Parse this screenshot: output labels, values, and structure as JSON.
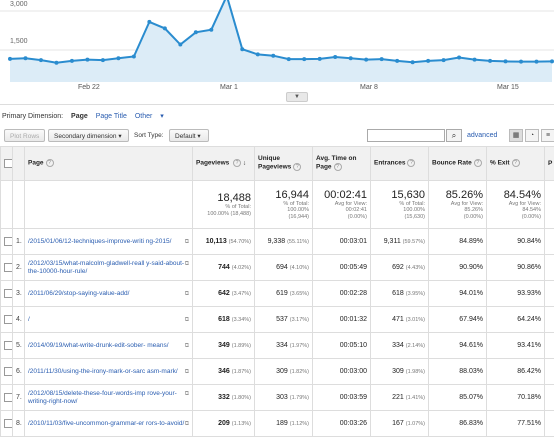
{
  "chart": {
    "y_labels": [
      "3,000",
      "1,500"
    ],
    "x_labels": [
      "Feb 22",
      "Mar 1",
      "Mar 8",
      "Mar 15"
    ],
    "series": [
      930,
      950,
      880,
      780,
      850,
      900,
      880,
      950,
      1020,
      2350,
      2100,
      1480,
      1950,
      2050,
      3350,
      1300,
      1100,
      1050,
      920,
      920,
      930,
      1000,
      950,
      900,
      920,
      850,
      800,
      850,
      880,
      980,
      900,
      850,
      830,
      820,
      820,
      830
    ],
    "line_color": "#2a8ccf",
    "fill_color": "#dcecf7"
  },
  "primary_dimension": {
    "label": "Primary Dimension:",
    "active": "Page",
    "option1": "Page Title",
    "other": "Other"
  },
  "toolbar": {
    "plot_rows": "Plot Rows",
    "secondary": "Secondary dimension",
    "sort_type_label": "Sort Type:",
    "sort_value": "Default",
    "search_placeholder": "",
    "advanced": "advanced"
  },
  "headers": {
    "page": "Page",
    "pageviews": "Pageviews",
    "unique": "Unique Pageviews",
    "avg_time": "Avg. Time on Page",
    "entrances": "Entrances",
    "bounce": "Bounce Rate",
    "exit": "% Exit",
    "extra": "P"
  },
  "totals": {
    "pageviews": "18,488",
    "pageviews_sub": "% of Total:",
    "pageviews_sub2": "100.00% (18,488)",
    "unique": "16,944",
    "unique_sub": "% of Total:",
    "unique_sub2": "100.00%",
    "unique_sub3": "(16,944)",
    "avg_time": "00:02:41",
    "avg_time_sub": "Avg for View:",
    "avg_time_sub2": "00:02:41",
    "avg_time_sub3": "(0.00%)",
    "entrances": "15,630",
    "entrances_sub": "% of Total:",
    "entrances_sub2": "100.00%",
    "entrances_sub3": "(15,630)",
    "bounce": "85.26%",
    "bounce_sub": "Avg for View:",
    "bounce_sub2": "85.26%",
    "bounce_sub3": "(0.00%)",
    "exit": "84.54%",
    "exit_sub": "Avg for View:",
    "exit_sub2": "84.54%",
    "exit_sub3": "(0.00%)"
  },
  "rows": [
    {
      "idx": "1.",
      "page": "/2015/01/06/12-techniques-improve-writi ng-2015/",
      "pv": "10,113",
      "pv_pct": "(54.70%)",
      "upv": "9,338",
      "upv_pct": "(55.11%)",
      "time": "00:03:01",
      "ent": "9,311",
      "ent_pct": "(59.57%)",
      "bounce": "84.89%",
      "exit": "90.84%"
    },
    {
      "idx": "2.",
      "page": "/2012/03/15/what-malcolm-gladwell-reall y-said-about-the-10000-hour-rule/",
      "pv": "744",
      "pv_pct": "(4.02%)",
      "upv": "694",
      "upv_pct": "(4.10%)",
      "time": "00:05:49",
      "ent": "692",
      "ent_pct": "(4.43%)",
      "bounce": "90.90%",
      "exit": "90.86%"
    },
    {
      "idx": "3.",
      "page": "/2011/06/29/stop-saying-value-add/",
      "pv": "642",
      "pv_pct": "(3.47%)",
      "upv": "619",
      "upv_pct": "(3.65%)",
      "time": "00:02:28",
      "ent": "618",
      "ent_pct": "(3.95%)",
      "bounce": "94.01%",
      "exit": "93.93%"
    },
    {
      "idx": "4.",
      "page": "/",
      "pv": "618",
      "pv_pct": "(3.34%)",
      "upv": "537",
      "upv_pct": "(3.17%)",
      "time": "00:01:32",
      "ent": "471",
      "ent_pct": "(3.01%)",
      "bounce": "67.94%",
      "exit": "64.24%"
    },
    {
      "idx": "5.",
      "page": "/2014/09/19/what-write-drunk-edit-sober- means/",
      "pv": "349",
      "pv_pct": "(1.89%)",
      "upv": "334",
      "upv_pct": "(1.97%)",
      "time": "00:05:10",
      "ent": "334",
      "ent_pct": "(2.14%)",
      "bounce": "94.61%",
      "exit": "93.41%"
    },
    {
      "idx": "6.",
      "page": "/2011/11/30/using-the-irony-mark-or-sarc asm-mark/",
      "pv": "346",
      "pv_pct": "(1.87%)",
      "upv": "309",
      "upv_pct": "(1.82%)",
      "time": "00:03:00",
      "ent": "309",
      "ent_pct": "(1.98%)",
      "bounce": "88.03%",
      "exit": "86.42%"
    },
    {
      "idx": "7.",
      "page": "/2012/08/15/delete-these-four-words-imp rove-your-writing-right-now/",
      "pv": "332",
      "pv_pct": "(1.80%)",
      "upv": "303",
      "upv_pct": "(1.79%)",
      "time": "00:03:59",
      "ent": "221",
      "ent_pct": "(1.41%)",
      "bounce": "85.07%",
      "exit": "70.18%"
    },
    {
      "idx": "8.",
      "page": "/2010/11/03/five-uncommon-grammar-er rors-to-avoid/",
      "pv": "209",
      "pv_pct": "(1.13%)",
      "upv": "189",
      "upv_pct": "(1.12%)",
      "time": "00:03:26",
      "ent": "167",
      "ent_pct": "(1.07%)",
      "bounce": "86.83%",
      "exit": "77.51%"
    }
  ]
}
